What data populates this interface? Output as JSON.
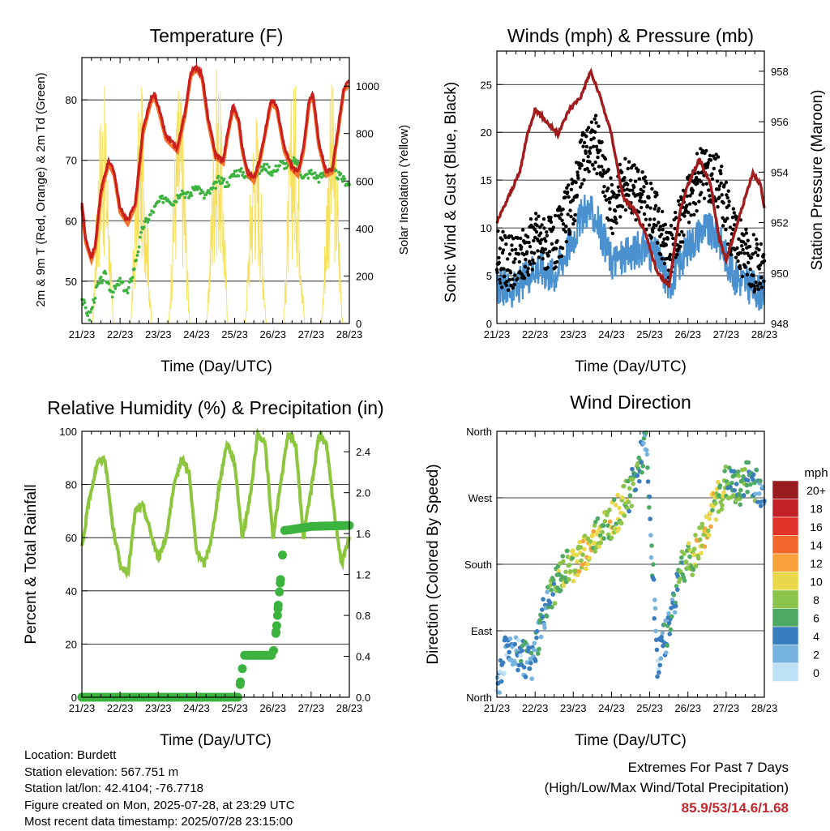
{
  "panels": {
    "temperature": {
      "title": "Temperature (F)",
      "ylabel_left": "2m & 9m T (Red, Orange) & 2m Td (Green)",
      "ylabel_right": "Solar Insolation (Yellow)",
      "xlabel": "Time (Day/UTC)",
      "left_ticks": [
        "50",
        "60",
        "70",
        "80"
      ],
      "right_ticks": [
        "0",
        "200",
        "400",
        "600",
        "800",
        "1000"
      ]
    },
    "winds": {
      "title": "Winds (mph) & Pressure (mb)",
      "ylabel_left": "Sonic Wind & Gust (Blue, Black)",
      "ylabel_right": "Station Pressure (Maroon)",
      "xlabel": "Time (Day/UTC)",
      "left_ticks": [
        "0",
        "5",
        "10",
        "15",
        "20",
        "25"
      ],
      "right_ticks": [
        "948",
        "950",
        "952",
        "954",
        "956",
        "958"
      ]
    },
    "humidity": {
      "title": "Relative Humidity (%) & Precipitation (in)",
      "ylabel_left": "Percent & Total Rainfall",
      "xlabel": "Time (Day/UTC)",
      "left_ticks": [
        "0",
        "20",
        "40",
        "60",
        "80",
        "100"
      ],
      "right_ticks": [
        "0.0",
        "0.4",
        "0.8",
        "1.2",
        "1.6",
        "2.0",
        "2.4"
      ]
    },
    "direction": {
      "title": "Wind Direction",
      "ylabel_left": "Direction (Colored By Speed)",
      "xlabel": "Time (Day/UTC)",
      "left_ticks": [
        "North",
        "East",
        "South",
        "West",
        "North"
      ],
      "colorbar_unit": "mph",
      "colorbar_labels": [
        "20+",
        "18",
        "16",
        "14",
        "12",
        "10",
        "8",
        "6",
        "4",
        "2",
        "0"
      ]
    }
  },
  "x_tick_labels": [
    "21/23",
    "22/23",
    "23/23",
    "24/23",
    "25/23",
    "26/23",
    "27/23",
    "28/23"
  ],
  "colors": {
    "temp_2m": "#c9201e",
    "temp_9m": "#f5752d",
    "dewpoint": "#3db33f",
    "insolation": "#f7e05c",
    "wind": "#4b91d0",
    "gust": "#000000",
    "pressure": "#a11c1c",
    "rh": "#8cc63e",
    "precip": "#3db33f",
    "colorbar": [
      "#9b1c20",
      "#c42028",
      "#e2342b",
      "#f1662b",
      "#f9a23b",
      "#e9d84b",
      "#8ac44a",
      "#4ea964",
      "#3a7dbf",
      "#76b4df",
      "#bfe1f6"
    ]
  },
  "station": {
    "location": "Location: Burdett",
    "elevation": "Station elevation: 567.751 m",
    "latlon": "Station lat/lon: 42.4104; -76.7718",
    "created": "Figure created on Mon, 2025-07-28, at 23:29 UTC",
    "recent": "Most recent data timestamp: 2025/07/28 23:15:00"
  },
  "extremes": {
    "heading": "Extremes For Past 7 Days",
    "subheading": "(High/Low/Max Wind/Total Precipitation)",
    "values": "85.9/53/14.6/1.68"
  },
  "chart_data": [
    {
      "type": "line",
      "title": "Temperature (F)",
      "xlabel": "Time (Day/UTC)",
      "ylabel": "2m & 9m T (Red, Orange) & 2m Td (Green)",
      "ylabel_right": "Solar Insolation (Yellow)",
      "x_ticks": [
        "21/23",
        "22/23",
        "23/23",
        "24/23",
        "25/23",
        "26/23",
        "27/23",
        "28/23"
      ],
      "ylim": [
        43,
        87
      ],
      "ylim_right": [
        0,
        1120
      ],
      "grid": true,
      "series": [
        {
          "name": "2m T",
          "x": [
            0,
            0.1,
            0.25,
            0.35,
            0.5,
            0.7,
            0.85,
            1.0,
            1.2,
            1.4,
            1.6,
            1.8,
            1.9,
            2.0,
            2.2,
            2.5,
            2.7,
            2.85,
            3.0,
            3.15,
            3.3,
            3.5,
            3.7,
            3.8,
            3.95,
            4.1,
            4.2,
            4.35,
            4.5,
            4.65,
            4.8,
            4.95,
            5.1,
            5.3,
            5.5,
            5.65,
            5.8,
            5.95,
            6.05,
            6.2,
            6.4,
            6.55,
            6.7,
            6.85,
            7.0
          ],
          "values": [
            63,
            57,
            54,
            56,
            65,
            70,
            68,
            62,
            60,
            63,
            75,
            80,
            81,
            79,
            74,
            72,
            78,
            84.5,
            85.5,
            84,
            77,
            71,
            70,
            74,
            79,
            77,
            72,
            68,
            67,
            70,
            75,
            80,
            79,
            72,
            69,
            68,
            72,
            80,
            81,
            73,
            68,
            68.5,
            75,
            82,
            83
          ]
        },
        {
          "name": "2m Td",
          "x": [
            0,
            0.2,
            0.4,
            0.6,
            0.8,
            1.0,
            1.2,
            1.4,
            1.6,
            1.8,
            2.0,
            2.2,
            2.4,
            2.6,
            2.8,
            3.0,
            3.2,
            3.4,
            3.6,
            3.8,
            4.0,
            4.2,
            4.4,
            4.6,
            4.8,
            5.0,
            5.2,
            5.4,
            5.6,
            5.8,
            6.0,
            6.2,
            6.4,
            6.6,
            6.8,
            7.0
          ],
          "values": [
            47,
            44,
            49,
            51,
            48,
            50,
            48,
            53,
            59,
            61,
            63,
            64,
            63,
            65,
            64,
            66,
            64,
            65,
            67,
            66,
            68,
            68,
            67,
            68,
            69,
            68,
            69.5,
            69,
            70,
            67,
            68,
            67,
            68,
            68,
            67,
            66
          ]
        },
        {
          "name": "Solar Insolation",
          "peaks_x": [
            0.55,
            1.55,
            2.55,
            3.55,
            4.55,
            5.55,
            6.55
          ],
          "peak_values": [
            1040,
            1010,
            1060,
            1100,
            960,
            1070,
            1030
          ]
        }
      ]
    },
    {
      "type": "line",
      "title": "Winds (mph) & Pressure (mb)",
      "xlabel": "Time (Day/UTC)",
      "ylabel": "Sonic Wind & Gust (Blue, Black)",
      "ylabel_right": "Station Pressure (Maroon)",
      "x_ticks": [
        "21/23",
        "22/23",
        "23/23",
        "24/23",
        "25/23",
        "26/23",
        "27/23",
        "28/23"
      ],
      "ylim": [
        0,
        28.5
      ],
      "ylim_right": [
        948,
        958.8
      ],
      "grid": true,
      "series": [
        {
          "name": "Sonic Wind",
          "x": [
            0,
            0.5,
            1.0,
            1.5,
            2.0,
            2.3,
            2.6,
            3.0,
            3.4,
            3.8,
            4.2,
            4.5,
            5.0,
            5.4,
            5.8,
            6.2,
            6.6,
            7.0
          ],
          "values": [
            4,
            3.5,
            6,
            5,
            9,
            12,
            11,
            6.5,
            7,
            8,
            7,
            4,
            8,
            10,
            9,
            5,
            4,
            3
          ]
        },
        {
          "name": "Gust",
          "x": [
            0,
            0.5,
            1.0,
            1.5,
            2.0,
            2.3,
            2.6,
            3.0,
            3.4,
            3.8,
            4.2,
            4.5,
            5.0,
            5.4,
            5.8,
            6.2,
            6.6,
            7.0
          ],
          "values": [
            7,
            6,
            9,
            8,
            13,
            18,
            19,
            12,
            15,
            13,
            11,
            7,
            13,
            16,
            15,
            9,
            7,
            5
          ]
        },
        {
          "name": "Station Pressure",
          "x": [
            0,
            0.3,
            0.6,
            0.8,
            1.0,
            1.3,
            1.6,
            1.9,
            2.2,
            2.45,
            2.7,
            3.0,
            3.3,
            3.6,
            3.9,
            4.2,
            4.5,
            4.8,
            5.0,
            5.3,
            5.6,
            5.8,
            6.0,
            6.2,
            6.5,
            6.7,
            6.9,
            7.0
          ],
          "values": [
            952,
            953,
            954,
            955.5,
            956.5,
            956,
            955.5,
            956.5,
            957,
            958,
            957,
            955.5,
            953,
            952.5,
            951.5,
            950,
            949.5,
            952.5,
            953.5,
            954.5,
            953.5,
            951.5,
            950.5,
            951.5,
            953,
            954,
            953.5,
            952.5
          ]
        }
      ]
    },
    {
      "type": "line",
      "title": "Relative Humidity (%) & Precipitation (in)",
      "xlabel": "Time (Day/UTC)",
      "ylabel": "Percent & Total Rainfall",
      "x_ticks": [
        "21/23",
        "22/23",
        "23/23",
        "24/23",
        "25/23",
        "26/23",
        "27/23",
        "28/23"
      ],
      "ylim": [
        0,
        100
      ],
      "ylim_right": [
        0,
        2.6
      ],
      "grid": true,
      "series": [
        {
          "name": "RH",
          "x": [
            0,
            0.2,
            0.4,
            0.6,
            0.8,
            1.0,
            1.2,
            1.4,
            1.6,
            1.8,
            2.0,
            2.2,
            2.4,
            2.6,
            2.8,
            3.0,
            3.2,
            3.4,
            3.6,
            3.8,
            4.0,
            4.2,
            4.4,
            4.6,
            4.8,
            5.0,
            5.2,
            5.4,
            5.6,
            5.8,
            6.0,
            6.2,
            6.4,
            6.6,
            6.8,
            7.0
          ],
          "values": [
            56,
            75,
            88,
            90,
            65,
            50,
            46,
            70,
            72,
            62,
            52,
            60,
            78,
            90,
            85,
            55,
            50,
            60,
            80,
            96,
            88,
            60,
            75,
            99,
            95,
            60,
            80,
            99,
            95,
            60,
            78,
            99,
            95,
            70,
            50,
            60
          ]
        },
        {
          "name": "Total Precipitation",
          "x": [
            0,
            4.1,
            4.15,
            4.25,
            5.0,
            5.05,
            5.1,
            5.15,
            5.2,
            5.3,
            5.5,
            6.0,
            7.0
          ],
          "values": [
            0,
            0,
            0.15,
            0.41,
            0.41,
            0.55,
            0.7,
            0.95,
            1.15,
            1.63,
            1.64,
            1.67,
            1.68
          ]
        }
      ]
    },
    {
      "type": "scatter",
      "title": "Wind Direction",
      "xlabel": "Time (Day/UTC)",
      "ylabel": "Direction (Colored By Speed)",
      "x_ticks": [
        "21/23",
        "22/23",
        "23/23",
        "24/23",
        "25/23",
        "26/23",
        "27/23",
        "28/23"
      ],
      "y_ticks": [
        "North",
        "East",
        "South",
        "West",
        "North"
      ],
      "ylim": [
        0,
        360
      ],
      "colorbar_labels": [
        "20+",
        "18",
        "16",
        "14",
        "12",
        "10",
        "8",
        "6",
        "4",
        "2",
        "0"
      ],
      "series": [
        {
          "name": "Direction",
          "x": [
            0,
            0.3,
            0.6,
            0.9,
            1.2,
            1.5,
            1.8,
            2.1,
            2.4,
            2.7,
            3.0,
            3.3,
            3.6,
            3.9,
            4.2,
            4.5,
            4.8,
            5.1,
            5.4,
            5.7,
            6.0,
            6.3,
            6.6,
            6.9
          ],
          "values": [
            20,
            70,
            60,
            40,
            110,
            150,
            175,
            185,
            200,
            230,
            240,
            260,
            290,
            345,
            50,
            95,
            180,
            185,
            220,
            260,
            290,
            280,
            300,
            280
          ],
          "speed": [
            2,
            3,
            3,
            4,
            4,
            6,
            8,
            9,
            10,
            8,
            9,
            8,
            6,
            5,
            3,
            4,
            6,
            8,
            10,
            9,
            7,
            6,
            6,
            4
          ]
        }
      ]
    }
  ]
}
